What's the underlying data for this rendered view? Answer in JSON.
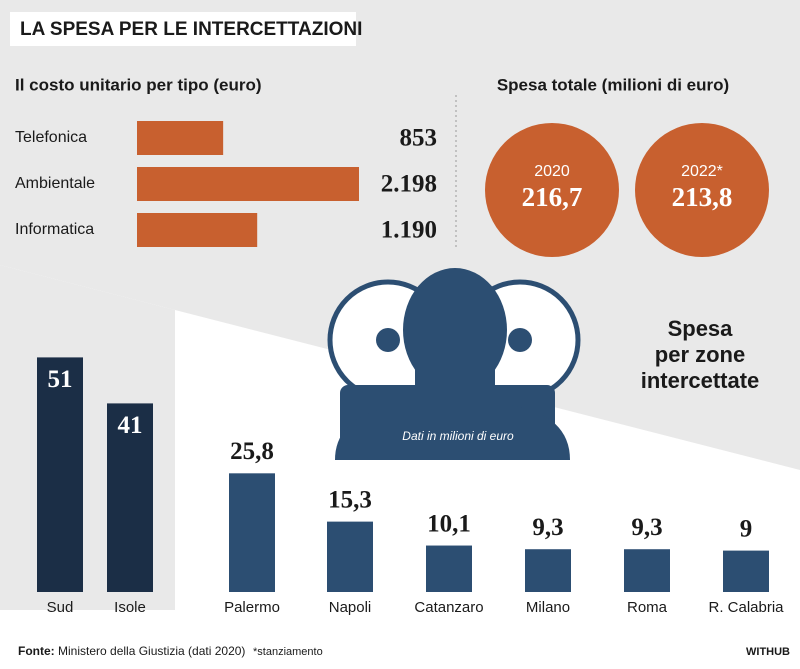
{
  "header": {
    "title": "LA SPESA PER LE INTERCETTAZIONI"
  },
  "chart_data": [
    {
      "type": "barh",
      "title": "Il costo unitario per tipo (euro)",
      "categories": [
        "Telefonica",
        "Ambientale",
        "Informatica"
      ],
      "values": [
        853,
        2198,
        1190
      ],
      "value_labels": [
        "853",
        "2.198",
        "1.190"
      ],
      "color": "#c8602f"
    },
    {
      "type": "circles",
      "title": "Spesa totale (milioni di euro)",
      "categories": [
        "2020",
        "2022*"
      ],
      "values": [
        216.7,
        213.8
      ],
      "value_labels": [
        "216,7",
        "213,8"
      ],
      "color": "#c8602f"
    },
    {
      "type": "bar",
      "title": "Spesa per zone intercettate",
      "subtitle": "Dati in milioni di euro",
      "categories": [
        "Sud",
        "Isole",
        "Palermo",
        "Napoli",
        "Catanzaro",
        "Milano",
        "Roma",
        "R. Calabria"
      ],
      "values": [
        51,
        41,
        25.8,
        15.3,
        10.1,
        9.3,
        9.3,
        9
      ],
      "value_labels": [
        "51",
        "41",
        "25,8",
        "15,3",
        "10,1",
        "9,3",
        "9,3",
        "9"
      ],
      "colors": [
        "#1b2e46",
        "#1b2e46",
        "#2c4e72",
        "#2c4e72",
        "#2c4e72",
        "#2c4e72",
        "#2c4e72",
        "#2c4e72"
      ]
    }
  ],
  "footer": {
    "source_label": "Fonte:",
    "source": "Ministero della Giustizia (dati 2020)",
    "note": "*stanziamento",
    "brand": "WITHUB"
  }
}
